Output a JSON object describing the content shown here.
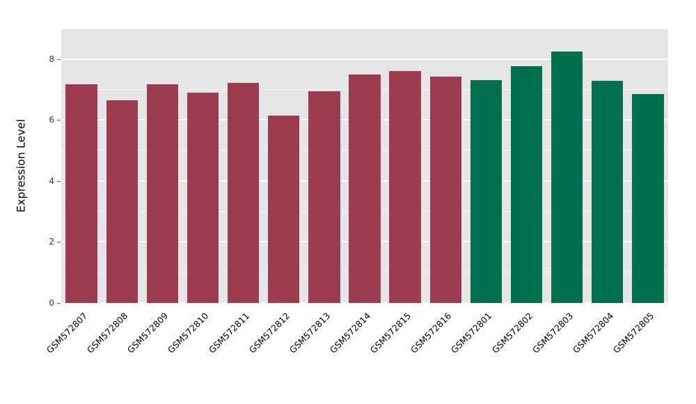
{
  "chart_data": {
    "type": "bar",
    "title": "",
    "xlabel": "",
    "ylabel": "Expression Level",
    "ylim": [
      0,
      8.98
    ],
    "yticks": [
      0,
      2,
      4,
      6,
      8
    ],
    "grid": "major white lines at yticks, minor white lines at odd integers, gray panel background",
    "legend_position": "none",
    "colors": {
      "group_a": "#9e3c4f",
      "group_b": "#00704e",
      "panel_bg": "#e5e5e5",
      "grid_color": "#ffffff",
      "tick_text": "#333333"
    },
    "bars": [
      {
        "label": "GSM572807",
        "value": 7.17,
        "group": "group_a",
        "color": "#9e3c4f"
      },
      {
        "label": "GSM572808",
        "value": 6.65,
        "group": "group_a",
        "color": "#9e3c4f"
      },
      {
        "label": "GSM572809",
        "value": 7.17,
        "group": "group_a",
        "color": "#9e3c4f"
      },
      {
        "label": "GSM572810",
        "value": 6.9,
        "group": "group_a",
        "color": "#9e3c4f"
      },
      {
        "label": "GSM572811",
        "value": 7.22,
        "group": "group_a",
        "color": "#9e3c4f"
      },
      {
        "label": "GSM572812",
        "value": 6.15,
        "group": "group_a",
        "color": "#9e3c4f"
      },
      {
        "label": "GSM572813",
        "value": 6.95,
        "group": "group_a",
        "color": "#9e3c4f"
      },
      {
        "label": "GSM572814",
        "value": 7.5,
        "group": "group_a",
        "color": "#9e3c4f"
      },
      {
        "label": "GSM572815",
        "value": 7.62,
        "group": "group_a",
        "color": "#9e3c4f"
      },
      {
        "label": "GSM572816",
        "value": 7.42,
        "group": "group_a",
        "color": "#9e3c4f"
      },
      {
        "label": "GSM572801",
        "value": 7.32,
        "group": "group_b",
        "color": "#00704e"
      },
      {
        "label": "GSM572802",
        "value": 7.78,
        "group": "group_b",
        "color": "#00704e"
      },
      {
        "label": "GSM572803",
        "value": 8.25,
        "group": "group_b",
        "color": "#00704e"
      },
      {
        "label": "GSM572804",
        "value": 7.3,
        "group": "group_b",
        "color": "#00704e"
      },
      {
        "label": "GSM572805",
        "value": 6.85,
        "group": "group_b",
        "color": "#00704e"
      }
    ]
  }
}
